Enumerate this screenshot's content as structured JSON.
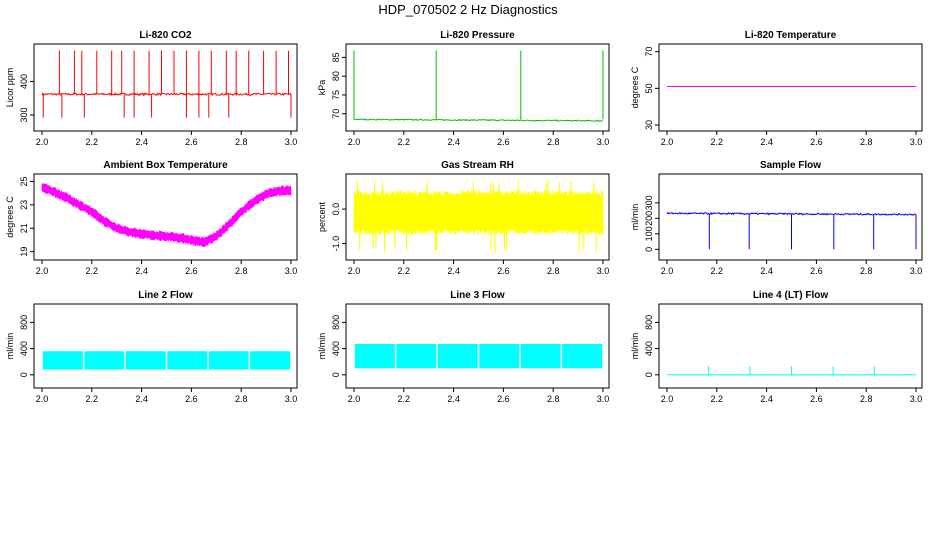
{
  "title": "HDP_070502  2 Hz Diagnostics",
  "chart_data": [
    {
      "type": "line",
      "title": "Li-820 CO2",
      "ylabel": "Licor ppm",
      "color": "#ff0000",
      "xlim": [
        2.0,
        3.0
      ],
      "xticks": [
        "2.0",
        "2.2",
        "2.4",
        "2.6",
        "2.8",
        "3.0"
      ],
      "ylim": [
        270,
        500
      ],
      "yticks": [
        "300",
        "400"
      ],
      "ytick_values": [
        300,
        400
      ],
      "pattern": "spikes",
      "baseline": 362,
      "band": 3,
      "up_spikes": [
        2.07,
        2.13,
        2.16,
        2.22,
        2.28,
        2.32,
        2.37,
        2.43,
        2.48,
        2.53,
        2.58,
        2.63,
        2.68,
        2.74,
        2.78,
        2.83,
        2.89,
        2.94,
        2.99
      ],
      "up_height": 492,
      "down_spikes": [
        2.005,
        2.08,
        2.17,
        2.33,
        2.37,
        2.44,
        2.58,
        2.63,
        2.67,
        2.75,
        3.0
      ],
      "down_height": 292
    },
    {
      "type": "line",
      "title": "Li-820 Pressure",
      "ylabel": "kPa",
      "color": "#00c000",
      "xlim": [
        2.0,
        3.0
      ],
      "xticks": [
        "2.0",
        "2.2",
        "2.4",
        "2.6",
        "2.8",
        "3.0"
      ],
      "ylim": [
        67,
        87.5
      ],
      "yticks": [
        "70",
        "75",
        "80",
        "85"
      ],
      "ytick_values": [
        70,
        75,
        80,
        85
      ],
      "pattern": "spikes",
      "baseline": 68.5,
      "baseline_end": 68.1,
      "band": 0.15,
      "up_spikes": [
        2.0,
        2.33,
        2.67,
        3.0
      ],
      "up_height": 86.8,
      "down_spikes": [],
      "down_height": 68
    },
    {
      "type": "line",
      "title": "Li-820 Temperature",
      "ylabel": "degrees C",
      "color": "#ff00ff",
      "xlim": [
        2.0,
        3.0
      ],
      "xticks": [
        "2.0",
        "2.2",
        "2.4",
        "2.6",
        "2.8",
        "3.0"
      ],
      "ylim": [
        30,
        72
      ],
      "yticks": [
        "30",
        "50",
        "70"
      ],
      "ytick_values": [
        30,
        50,
        70
      ],
      "pattern": "flat",
      "baseline": 51,
      "band": 0.15
    },
    {
      "type": "line",
      "title": "Ambient Box Temperature",
      "ylabel": "degrees C",
      "color": "#ff00ff",
      "xlim": [
        2.0,
        3.0
      ],
      "xticks": [
        "2.0",
        "2.2",
        "2.4",
        "2.6",
        "2.8",
        "3.0"
      ],
      "ylim": [
        18.8,
        25.3
      ],
      "yticks": [
        "19",
        "21",
        "23",
        "25"
      ],
      "ytick_values": [
        19,
        21,
        23,
        25
      ],
      "pattern": "curve",
      "band": 0.45,
      "x": [
        2.0,
        2.05,
        2.1,
        2.15,
        2.2,
        2.25,
        2.3,
        2.35,
        2.4,
        2.45,
        2.5,
        2.55,
        2.6,
        2.65,
        2.7,
        2.75,
        2.8,
        2.85,
        2.9,
        2.95,
        3.0
      ],
      "values": [
        24.5,
        24.1,
        23.6,
        23.0,
        22.4,
        21.6,
        21.0,
        20.7,
        20.5,
        20.4,
        20.3,
        20.2,
        20.0,
        19.8,
        20.3,
        21.3,
        22.4,
        23.3,
        23.9,
        24.2,
        24.2
      ]
    },
    {
      "type": "line",
      "title": "Gas Stream RH",
      "ylabel": "percent",
      "color": "#ffff00",
      "xlim": [
        2.0,
        3.0
      ],
      "xticks": [
        "2.0",
        "2.2",
        "2.4",
        "2.6",
        "2.8",
        "3.0"
      ],
      "ylim": [
        -1.3,
        0.9
      ],
      "yticks": [
        "-1.0",
        "0.0"
      ],
      "ytick_values": [
        -1.0,
        0.0
      ],
      "pattern": "noise",
      "lo": -0.75,
      "hi": 0.55,
      "lo_extreme": -1.3,
      "hi_extreme": 0.85
    },
    {
      "type": "line",
      "title": "Sample Flow",
      "ylabel": "ml/min",
      "color": "#0000ff",
      "xlim": [
        2.0,
        3.0
      ],
      "xticks": [
        "2.0",
        "2.2",
        "2.4",
        "2.6",
        "2.8",
        "3.0"
      ],
      "ylim": [
        -30,
        460
      ],
      "yticks": [
        "0",
        "100",
        "200",
        "300"
      ],
      "ytick_values": [
        0,
        100,
        200,
        300
      ],
      "pattern": "spikes",
      "baseline": 225,
      "baseline_start": 232,
      "baseline_end": 225,
      "band": 5,
      "up_spikes": [],
      "up_height": 240,
      "down_spikes": [
        2.17,
        2.33,
        2.5,
        2.67,
        2.83,
        3.0
      ],
      "down_height": 0
    },
    {
      "type": "line",
      "title": "Line 2 Flow",
      "ylabel": "ml/min",
      "color": "#00ffff",
      "xlim": [
        2.0,
        3.0
      ],
      "xticks": [
        "2.0",
        "2.2",
        "2.4",
        "2.6",
        "2.8",
        "3.0"
      ],
      "ylim": [
        -110,
        1020
      ],
      "yticks": [
        "0",
        "400",
        "800"
      ],
      "ytick_values": [
        0,
        400,
        800
      ],
      "pattern": "blocks",
      "lo": 80,
      "hi": 360,
      "gaps": [
        2.167,
        2.333,
        2.5,
        2.667,
        2.833
      ]
    },
    {
      "type": "line",
      "title": "Line 3 Flow",
      "ylabel": "ml/min",
      "color": "#00ffff",
      "xlim": [
        2.0,
        3.0
      ],
      "xticks": [
        "2.0",
        "2.2",
        "2.4",
        "2.6",
        "2.8",
        "3.0"
      ],
      "ylim": [
        -110,
        1020
      ],
      "yticks": [
        "0",
        "400",
        "800"
      ],
      "ytick_values": [
        0,
        400,
        800
      ],
      "pattern": "blocks",
      "lo": 100,
      "hi": 470,
      "gaps": [
        2.167,
        2.333,
        2.5,
        2.667,
        2.833
      ]
    },
    {
      "type": "line",
      "title": "Line 4 (LT) Flow",
      "ylabel": "ml/min",
      "color": "#00ffff",
      "xlim": [
        2.0,
        3.0
      ],
      "xticks": [
        "2.0",
        "2.2",
        "2.4",
        "2.6",
        "2.8",
        "3.0"
      ],
      "ylim": [
        -110,
        1020
      ],
      "yticks": [
        "0",
        "400",
        "800"
      ],
      "ytick_values": [
        0,
        400,
        800
      ],
      "pattern": "spikes",
      "baseline": 0,
      "band": 3,
      "up_spikes": [
        2.167,
        2.333,
        2.5,
        2.667,
        2.833
      ],
      "up_height": 130,
      "down_spikes": [],
      "down_height": 0
    }
  ]
}
